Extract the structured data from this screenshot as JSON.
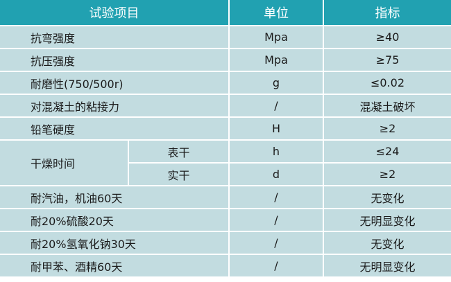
{
  "colors": {
    "header_bg": "#21a1b1",
    "row_bg": "#c2dce0",
    "border": "#ffffff"
  },
  "header": {
    "item": "试验项目",
    "unit": "单位",
    "spec": "指标"
  },
  "rows": [
    {
      "item": "抗弯强度",
      "unit": "Mpa",
      "spec": "≥40"
    },
    {
      "item": "抗压强度",
      "unit": "Mpa",
      "spec": "≥75"
    },
    {
      "item": "耐磨性(750/500r)",
      "unit": "g",
      "spec": "≤0.02"
    },
    {
      "item": "对混凝土的粘接力",
      "unit": "/",
      "spec": "混凝土破坏"
    },
    {
      "item": "铅笔硬度",
      "unit": "H",
      "spec": "≥2"
    }
  ],
  "drying": {
    "item": "干燥时间",
    "subs": [
      {
        "sub": "表干",
        "unit": "h",
        "spec": "≤24"
      },
      {
        "sub": "实干",
        "unit": "d",
        "spec": "≥2"
      }
    ]
  },
  "rows2": [
    {
      "item": "耐汽油，机油60天",
      "unit": "/",
      "spec": "无变化"
    },
    {
      "item": "耐20%硫酸20天",
      "unit": "/",
      "spec": "无明显变化"
    },
    {
      "item": "耐20%氢氧化钠30天",
      "unit": "/",
      "spec": "无变化"
    },
    {
      "item": "耐甲苯、酒精60天",
      "unit": "/",
      "spec": "无明显变化"
    }
  ]
}
